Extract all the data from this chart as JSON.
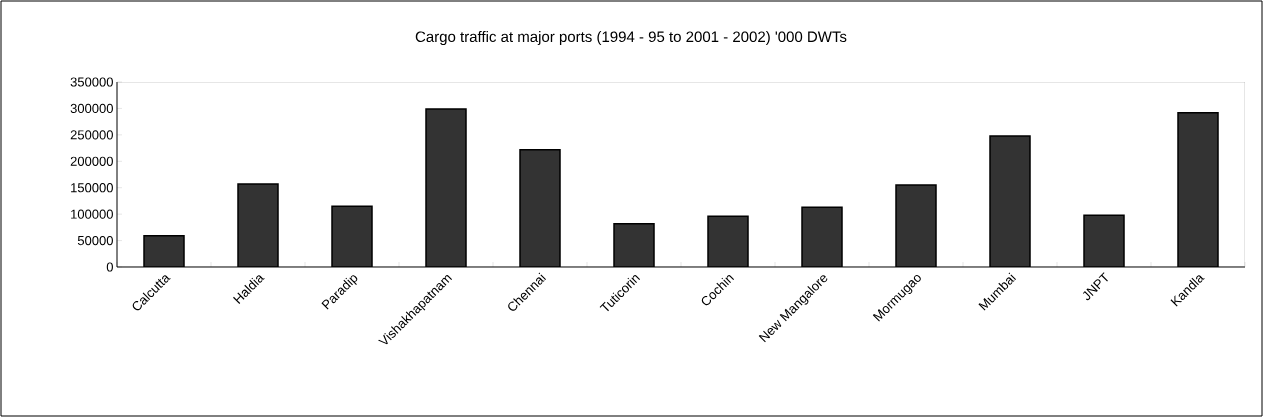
{
  "chart_data": {
    "type": "bar",
    "title": "Cargo traffic at major ports (1994 - 95 to 2001 - 2002) '000 DWTs",
    "categories": [
      "Calcutta",
      "Haldia",
      "Paradip",
      "Vishakhapatnam",
      "Chennai",
      "Tuticorin",
      "Cochin",
      "New Mangalore",
      "Mormugao",
      "Mumbai",
      "JNPT",
      "Kandla"
    ],
    "values": [
      59000,
      157000,
      115000,
      299000,
      222000,
      82000,
      96000,
      113000,
      155000,
      248000,
      98000,
      292000
    ],
    "color": "#333333",
    "ylim": [
      0,
      350000
    ],
    "yticks": [
      0,
      50000,
      100000,
      150000,
      200000,
      250000,
      300000,
      350000
    ],
    "grid": false
  }
}
